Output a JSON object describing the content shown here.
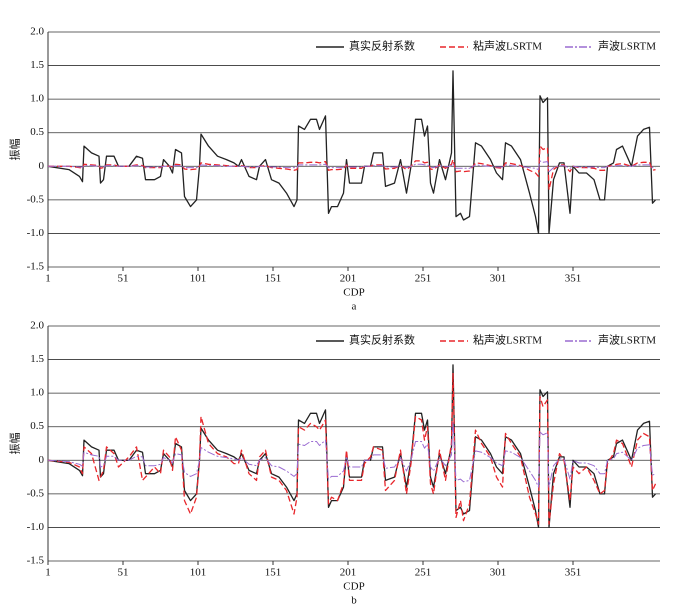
{
  "chart_data": [
    {
      "type": "line",
      "subtitle": "a",
      "x_label": "CDP",
      "y_label": "振幅",
      "grid": true,
      "legend": "upper right",
      "xlim": [
        1,
        409
      ],
      "ylim": [
        -1.5,
        2.0
      ],
      "xticks": [
        1,
        51,
        101,
        151,
        201,
        251,
        301,
        351
      ],
      "yticks": [
        -1.5,
        {
          "value": -1.0,
          "label": "-1.0"
        },
        -0.5,
        0,
        0.5,
        {
          "value": 1.0,
          "label": "1.0"
        },
        1.5,
        {
          "value": 2.0,
          "label": "2.0"
        }
      ],
      "x": [
        1,
        15,
        22,
        24,
        25,
        30,
        35,
        36,
        38,
        40,
        45,
        48,
        55,
        60,
        64,
        66,
        72,
        76,
        78,
        82,
        84,
        86,
        90,
        92,
        96,
        100,
        102,
        103,
        108,
        114,
        120,
        125,
        128,
        130,
        135,
        140,
        142,
        146,
        150,
        155,
        160,
        165,
        167,
        168,
        172,
        176,
        180,
        182,
        186,
        188,
        190,
        194,
        198,
        200,
        202,
        210,
        212,
        216,
        218,
        224,
        226,
        232,
        236,
        240,
        243,
        246,
        250,
        252,
        254,
        256,
        258,
        262,
        266,
        270,
        271,
        273,
        276,
        278,
        282,
        286,
        290,
        296,
        300,
        304,
        306,
        310,
        316,
        322,
        326,
        328,
        329,
        331,
        334,
        335,
        338,
        342,
        345,
        349,
        351,
        355,
        360,
        365,
        369,
        372,
        374,
        378,
        380,
        384,
        390,
        394,
        398,
        402,
        404,
        406
      ],
      "series": [
        {
          "name": "真实反射系数",
          "color": "#222222",
          "values": [
            0,
            -0.05,
            -0.15,
            -0.23,
            0.3,
            0.2,
            0.15,
            -0.25,
            -0.2,
            0.15,
            0.15,
            0,
            0,
            0.15,
            0.12,
            -0.2,
            -0.2,
            -0.15,
            0.1,
            0,
            -0.1,
            0.25,
            0.2,
            -0.45,
            -0.6,
            -0.5,
            0,
            0.48,
            0.3,
            0.15,
            0.1,
            0.05,
            0,
            0.1,
            -0.15,
            -0.2,
            0,
            0.1,
            -0.2,
            -0.25,
            -0.4,
            -0.6,
            -0.5,
            0.6,
            0.55,
            0.7,
            0.7,
            0.55,
            0.75,
            -0.7,
            -0.6,
            -0.6,
            -0.4,
            0.1,
            -0.25,
            -0.25,
            0,
            0,
            0.2,
            0.2,
            -0.3,
            -0.25,
            0.1,
            -0.4,
            0,
            0.7,
            0.7,
            0.45,
            0.6,
            -0.25,
            -0.4,
            0.1,
            -0.2,
            0.2,
            1.42,
            -0.75,
            -0.7,
            -0.8,
            -0.75,
            0.35,
            0.3,
            0.1,
            -0.1,
            -0.2,
            0.35,
            0.3,
            0.1,
            -0.4,
            -0.75,
            -1.0,
            1.05,
            0.95,
            1.02,
            -1.0,
            -0.2,
            0.05,
            0.05,
            -0.7,
            0,
            -0.1,
            -0.1,
            -0.2,
            -0.5,
            -0.5,
            0,
            0.05,
            0.25,
            0.3,
            0,
            0.45,
            0.55,
            0.58,
            -0.55,
            -0.5
          ]
        },
        {
          "name": "粘声波LSRTM",
          "color": "#e8262b",
          "values": [
            0,
            0,
            -0.02,
            -0.03,
            0.03,
            0.02,
            0.01,
            -0.03,
            -0.02,
            0.02,
            0.02,
            0,
            0,
            0.02,
            0.01,
            -0.02,
            -0.02,
            -0.02,
            0.01,
            0,
            -0.01,
            0.03,
            0.02,
            -0.04,
            -0.05,
            -0.04,
            0,
            0.05,
            0.03,
            0.02,
            0.01,
            0,
            0,
            0.01,
            -0.02,
            -0.02,
            0,
            0.01,
            -0.02,
            -0.03,
            -0.04,
            -0.06,
            -0.05,
            0.05,
            0.05,
            0.06,
            0.06,
            0.05,
            0.07,
            -0.06,
            -0.05,
            -0.05,
            -0.04,
            0.02,
            -0.03,
            -0.03,
            0,
            0,
            0.02,
            0.02,
            -0.04,
            -0.03,
            0.01,
            -0.05,
            0,
            0.08,
            0.08,
            0.05,
            0.06,
            -0.04,
            -0.05,
            0.02,
            -0.03,
            0.03,
            0.1,
            -0.08,
            -0.07,
            -0.08,
            -0.07,
            0.05,
            0.04,
            0.01,
            -0.02,
            -0.03,
            0.05,
            0.04,
            0.01,
            -0.06,
            -0.1,
            -0.15,
            0.3,
            0.25,
            0.28,
            -0.35,
            -0.05,
            0.02,
            0.02,
            -0.08,
            0,
            -0.02,
            -0.02,
            -0.03,
            -0.06,
            -0.06,
            0,
            0.01,
            0.03,
            0.04,
            0,
            0.05,
            0.06,
            0.06,
            -0.06,
            -0.05
          ]
        },
        {
          "name": "声波LSRTM",
          "color": "#9a6bd1",
          "values": [
            0,
            0,
            -0.01,
            -0.01,
            0.01,
            0.01,
            0,
            -0.01,
            -0.01,
            0.01,
            0.01,
            0,
            0,
            0.01,
            0,
            -0.01,
            -0.01,
            -0.01,
            0,
            0,
            0,
            0.01,
            0.01,
            -0.02,
            -0.02,
            -0.02,
            0,
            0.02,
            0.01,
            0.01,
            0,
            0,
            0,
            0,
            -0.01,
            -0.01,
            0,
            0,
            -0.01,
            -0.01,
            -0.02,
            -0.02,
            -0.02,
            0.02,
            0.02,
            0.02,
            0.02,
            0.02,
            0.03,
            -0.02,
            -0.02,
            -0.02,
            -0.02,
            0.01,
            -0.01,
            -0.01,
            0,
            0,
            0.01,
            0.01,
            -0.01,
            -0.01,
            0,
            -0.02,
            0,
            0.03,
            0.03,
            0.02,
            0.02,
            -0.01,
            -0.02,
            0.01,
            -0.01,
            0.01,
            0.04,
            -0.03,
            -0.03,
            -0.03,
            -0.03,
            0.02,
            0.01,
            0,
            -0.01,
            -0.01,
            0.02,
            0.01,
            0,
            -0.02,
            -0.03,
            -0.05,
            0.08,
            0.06,
            0.07,
            -0.08,
            -0.02,
            0.01,
            0.01,
            -0.03,
            0,
            -0.01,
            -0.01,
            -0.01,
            -0.02,
            -0.02,
            0,
            0,
            0.01,
            0.01,
            0,
            0.02,
            0.02,
            0.02,
            -0.02,
            -0.02
          ]
        }
      ]
    },
    {
      "type": "line",
      "subtitle": "b",
      "x_label": "CDP",
      "y_label": "振幅",
      "grid": true,
      "legend": "upper right",
      "xlim": [
        1,
        409
      ],
      "ylim": [
        -1.5,
        2.0
      ],
      "xticks": [
        1,
        51,
        101,
        151,
        201,
        251,
        301,
        351
      ],
      "yticks": [
        -1.5,
        {
          "value": -1.0,
          "label": "-1.0"
        },
        -0.5,
        0,
        0.5,
        {
          "value": 1.0,
          "label": "1.0"
        },
        1.5,
        {
          "value": 2.0,
          "label": "2.0"
        }
      ],
      "x": [
        1,
        15,
        22,
        24,
        25,
        30,
        35,
        36,
        38,
        40,
        45,
        48,
        55,
        60,
        64,
        66,
        72,
        76,
        78,
        82,
        84,
        86,
        90,
        92,
        96,
        100,
        102,
        103,
        108,
        114,
        120,
        125,
        128,
        130,
        135,
        140,
        142,
        146,
        150,
        155,
        160,
        165,
        167,
        168,
        172,
        176,
        180,
        182,
        186,
        188,
        190,
        194,
        198,
        200,
        202,
        210,
        212,
        216,
        218,
        224,
        226,
        232,
        236,
        240,
        243,
        246,
        250,
        252,
        254,
        256,
        258,
        262,
        266,
        270,
        271,
        273,
        276,
        278,
        282,
        286,
        290,
        296,
        300,
        304,
        306,
        310,
        316,
        322,
        326,
        328,
        329,
        331,
        334,
        335,
        338,
        342,
        345,
        349,
        351,
        355,
        360,
        365,
        369,
        372,
        374,
        378,
        380,
        384,
        390,
        394,
        398,
        402,
        404,
        406
      ],
      "series": [
        {
          "name": "真实反射系数",
          "color": "#222222",
          "values": [
            0,
            -0.05,
            -0.15,
            -0.23,
            0.3,
            0.2,
            0.15,
            -0.25,
            -0.2,
            0.15,
            0.15,
            0,
            0,
            0.15,
            0.12,
            -0.2,
            -0.2,
            -0.15,
            0.1,
            0,
            -0.1,
            0.25,
            0.2,
            -0.45,
            -0.6,
            -0.5,
            0,
            0.48,
            0.3,
            0.15,
            0.1,
            0.05,
            0,
            0.1,
            -0.15,
            -0.2,
            0,
            0.1,
            -0.2,
            -0.25,
            -0.4,
            -0.6,
            -0.5,
            0.6,
            0.55,
            0.7,
            0.7,
            0.55,
            0.75,
            -0.7,
            -0.6,
            -0.6,
            -0.4,
            0.1,
            -0.25,
            -0.25,
            0,
            0,
            0.2,
            0.2,
            -0.3,
            -0.25,
            0.1,
            -0.4,
            0,
            0.7,
            0.7,
            0.45,
            0.6,
            -0.25,
            -0.4,
            0.1,
            -0.2,
            0.2,
            1.42,
            -0.75,
            -0.7,
            -0.8,
            -0.75,
            0.35,
            0.3,
            0.1,
            -0.1,
            -0.2,
            0.35,
            0.3,
            0.1,
            -0.4,
            -0.75,
            -1.0,
            1.05,
            0.95,
            1.02,
            -1.0,
            -0.2,
            0.05,
            0.05,
            -0.7,
            0,
            -0.1,
            -0.1,
            -0.2,
            -0.5,
            -0.5,
            0,
            0.05,
            0.25,
            0.3,
            0,
            0.45,
            0.55,
            0.58,
            -0.55,
            -0.5
          ]
        },
        {
          "name": "粘声波LSRTM",
          "color": "#e8262b",
          "values": [
            0,
            -0.03,
            -0.1,
            -0.2,
            0.2,
            0.1,
            -0.3,
            -0.25,
            -0.15,
            0.2,
            0.1,
            -0.1,
            0.05,
            0.2,
            -0.3,
            -0.25,
            -0.1,
            -0.2,
            0.15,
            0.05,
            -0.15,
            0.35,
            0.15,
            -0.6,
            -0.8,
            -0.55,
            0,
            0.65,
            0.25,
            0.1,
            0.05,
            -0.05,
            -0.05,
            0.15,
            -0.2,
            -0.3,
            0.05,
            0.15,
            -0.25,
            -0.3,
            -0.45,
            -0.8,
            -0.55,
            0.5,
            0.45,
            0.55,
            0.5,
            0.45,
            0.6,
            -0.65,
            -0.55,
            -0.6,
            -0.35,
            0.15,
            -0.3,
            -0.3,
            -0.05,
            0.05,
            0.2,
            0.15,
            -0.45,
            -0.3,
            0.15,
            -0.5,
            -0.05,
            0.65,
            0.6,
            0.3,
            0.5,
            -0.35,
            -0.5,
            0.15,
            -0.3,
            0.25,
            1.3,
            -0.85,
            -0.6,
            -0.9,
            -0.65,
            0.45,
            0.25,
            0.05,
            -0.25,
            -0.4,
            0.4,
            0.25,
            0.05,
            -0.55,
            -0.8,
            -0.95,
            0.95,
            0.8,
            0.9,
            -0.95,
            -0.35,
            0.1,
            0,
            -0.6,
            -0.1,
            -0.2,
            -0.1,
            -0.3,
            -0.5,
            -0.45,
            -0.05,
            0.1,
            0.3,
            0.25,
            -0.1,
            0.3,
            0.4,
            0.35,
            -0.45,
            -0.35
          ]
        },
        {
          "name": "声波LSRTM",
          "color": "#9a6bd1",
          "values": [
            0,
            -0.02,
            -0.06,
            -0.09,
            0.12,
            0.08,
            0.06,
            -0.1,
            -0.08,
            0.06,
            0.06,
            0,
            0,
            0.06,
            0.05,
            -0.08,
            -0.08,
            -0.06,
            0.04,
            0,
            -0.04,
            0.1,
            0.08,
            -0.18,
            -0.24,
            -0.2,
            0,
            0.19,
            0.12,
            0.06,
            0.04,
            0.02,
            0,
            0.04,
            -0.06,
            -0.08,
            0,
            0.04,
            -0.08,
            -0.1,
            -0.16,
            -0.24,
            -0.2,
            0.24,
            0.22,
            0.28,
            0.28,
            0.22,
            0.3,
            -0.28,
            -0.24,
            -0.24,
            -0.16,
            0.04,
            -0.1,
            -0.1,
            0,
            0,
            0.08,
            0.08,
            -0.12,
            -0.1,
            0.04,
            -0.16,
            0,
            0.28,
            0.28,
            0.18,
            0.24,
            -0.1,
            -0.16,
            0.04,
            -0.08,
            0.08,
            0.57,
            -0.3,
            -0.28,
            -0.32,
            -0.3,
            0.14,
            0.12,
            0.04,
            -0.04,
            -0.08,
            0.14,
            0.12,
            0.04,
            -0.16,
            -0.3,
            -0.4,
            0.42,
            0.38,
            0.41,
            -0.4,
            -0.08,
            0.02,
            0.02,
            -0.28,
            0,
            -0.04,
            -0.04,
            -0.08,
            -0.2,
            -0.2,
            0,
            0.02,
            0.1,
            0.12,
            0,
            0.18,
            0.22,
            0.23,
            -0.22,
            -0.2
          ]
        }
      ]
    }
  ]
}
